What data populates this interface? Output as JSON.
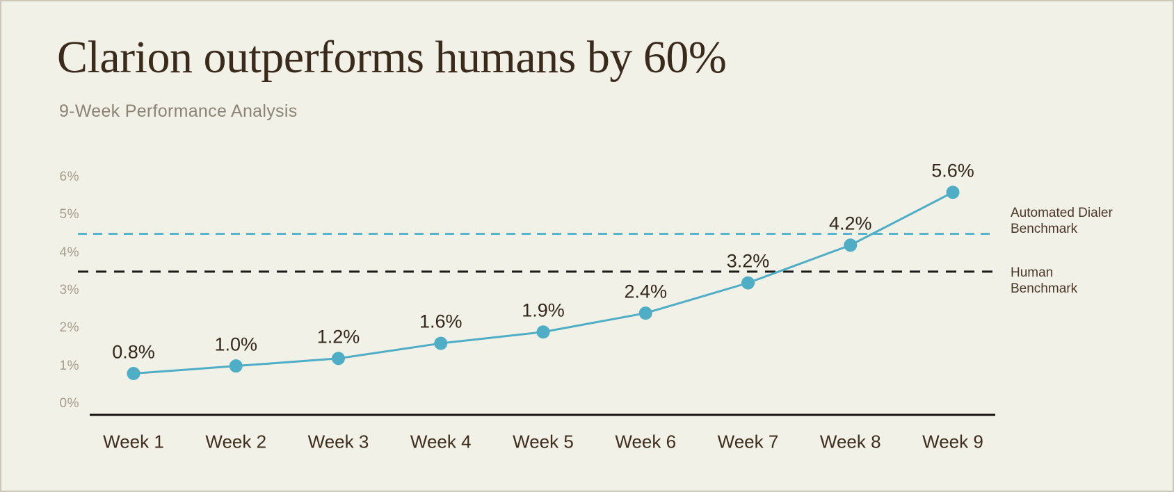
{
  "header": {
    "title": "Clarion outperforms humans by 60%",
    "subtitle": "9-Week Performance Analysis"
  },
  "palette": {
    "background": "#f2f1e8",
    "frame_border": "#cdc7ba",
    "accent_teal": "#4fadc5",
    "benchmark_teal_dash": "#5bb3c9",
    "benchmark_black_dash": "#1d1b17",
    "axis_black": "#15120e",
    "title_brown": "#3a2a1b",
    "subtitle_gray": "#8b8376",
    "ytick_gray": "#a69d8c",
    "label_brown": "#33261a"
  },
  "chart_data": {
    "type": "line",
    "title": "Clarion outperforms humans by 60%",
    "subtitle": "9-Week Performance Analysis",
    "categories": [
      "Week 1",
      "Week 2",
      "Week 3",
      "Week 4",
      "Week 5",
      "Week 6",
      "Week 7",
      "Week 8",
      "Week 9"
    ],
    "series": [
      {
        "name": "Clarion",
        "values": [
          0.8,
          1.0,
          1.2,
          1.6,
          1.9,
          2.4,
          3.2,
          4.2,
          5.6
        ],
        "point_labels": [
          "0.8%",
          "1.0%",
          "1.2%",
          "1.6%",
          "1.9%",
          "2.4%",
          "3.2%",
          "4.2%",
          "5.6%"
        ],
        "color": "#4fadc5"
      }
    ],
    "reference_lines": [
      {
        "label": "Automated Dialer Benchmark",
        "label_lines": "Automated Dialer\nBenchmark",
        "value": 4.5,
        "color": "#5bb3c9",
        "style": "dashed"
      },
      {
        "label": "Human Benchmark",
        "label_lines": "Human\nBenchmark",
        "value": 3.5,
        "color": "#1d1b17",
        "style": "dashed"
      }
    ],
    "xlabel": "",
    "ylabel": "",
    "ylim": [
      0,
      6
    ],
    "ytick_labels": [
      "0%",
      "1%",
      "2%",
      "3%",
      "4%",
      "5%",
      "6%"
    ],
    "grid": false,
    "legend_position": "right-annotations"
  }
}
